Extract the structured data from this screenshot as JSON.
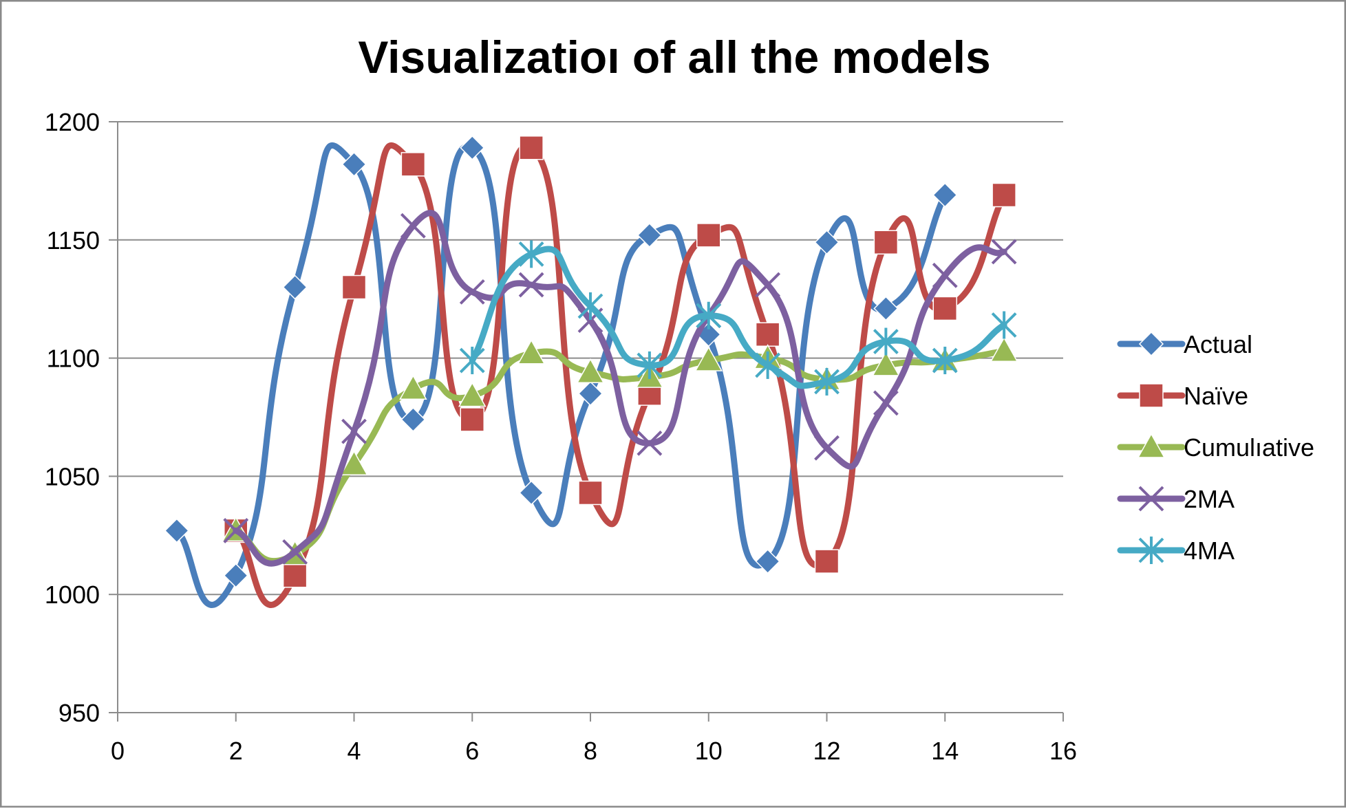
{
  "chart_data": {
    "type": "line",
    "title": "Visualizatioı of all the models",
    "xlabel": "",
    "ylabel": "",
    "xlim": [
      0,
      16
    ],
    "ylim": [
      950,
      1200
    ],
    "x_ticks": [
      "0",
      "2",
      "4",
      "6",
      "8",
      "10",
      "12",
      "14",
      "16"
    ],
    "y_ticks": [
      "950",
      "1000",
      "1050",
      "1100",
      "1150",
      "1200"
    ],
    "grid": "horizontal",
    "legend_position": "right",
    "smooth": true,
    "series": [
      {
        "name": "Actual",
        "color": "#4a7ebb",
        "marker": "diamond",
        "points": [
          [
            1,
            1027
          ],
          [
            2,
            1008
          ],
          [
            3,
            1130
          ],
          [
            4,
            1182
          ],
          [
            5,
            1074
          ],
          [
            6,
            1189
          ],
          [
            7,
            1043
          ],
          [
            8,
            1085
          ],
          [
            9,
            1152
          ],
          [
            10,
            1110
          ],
          [
            11,
            1014
          ],
          [
            12,
            1149
          ],
          [
            13,
            1121
          ],
          [
            14,
            1169
          ]
        ]
      },
      {
        "name": "Naïve",
        "color": "#be4b48",
        "marker": "square",
        "points": [
          [
            2,
            1027
          ],
          [
            3,
            1008
          ],
          [
            4,
            1130
          ],
          [
            5,
            1182
          ],
          [
            6,
            1074
          ],
          [
            7,
            1189
          ],
          [
            8,
            1043
          ],
          [
            9,
            1085
          ],
          [
            10,
            1152
          ],
          [
            11,
            1110
          ],
          [
            12,
            1014
          ],
          [
            13,
            1149
          ],
          [
            14,
            1121
          ],
          [
            15,
            1169
          ]
        ]
      },
      {
        "name": "Cumulative",
        "legend_label": "Cumulıative",
        "color": "#98b954",
        "marker": "triangle",
        "points": [
          [
            2,
            1027
          ],
          [
            3,
            1017
          ],
          [
            4,
            1055
          ],
          [
            5,
            1087
          ],
          [
            6,
            1084
          ],
          [
            7,
            1102
          ],
          [
            8,
            1094
          ],
          [
            9,
            1092
          ],
          [
            10,
            1099
          ],
          [
            11,
            1100
          ],
          [
            12,
            1091
          ],
          [
            13,
            1097
          ],
          [
            14,
            1099
          ],
          [
            15,
            1103
          ]
        ]
      },
      {
        "name": "2MA",
        "color": "#7d60a0",
        "marker": "x",
        "points": [
          [
            2,
            1027
          ],
          [
            3,
            1018
          ],
          [
            4,
            1069
          ],
          [
            5,
            1156
          ],
          [
            6,
            1128
          ],
          [
            7,
            1131
          ],
          [
            8,
            1116
          ],
          [
            9,
            1064
          ],
          [
            10,
            1118
          ],
          [
            11,
            1131
          ],
          [
            12,
            1062
          ],
          [
            13,
            1081
          ],
          [
            14,
            1135
          ],
          [
            15,
            1145
          ]
        ]
      },
      {
        "name": "4MA",
        "color": "#46aac5",
        "marker": "star",
        "points": [
          [
            6,
            1099
          ],
          [
            7,
            1144
          ],
          [
            8,
            1122
          ],
          [
            9,
            1097
          ],
          [
            10,
            1118
          ],
          [
            11,
            1097
          ],
          [
            12,
            1090
          ],
          [
            13,
            1107
          ],
          [
            14,
            1099
          ],
          [
            15,
            1114
          ]
        ]
      }
    ]
  }
}
